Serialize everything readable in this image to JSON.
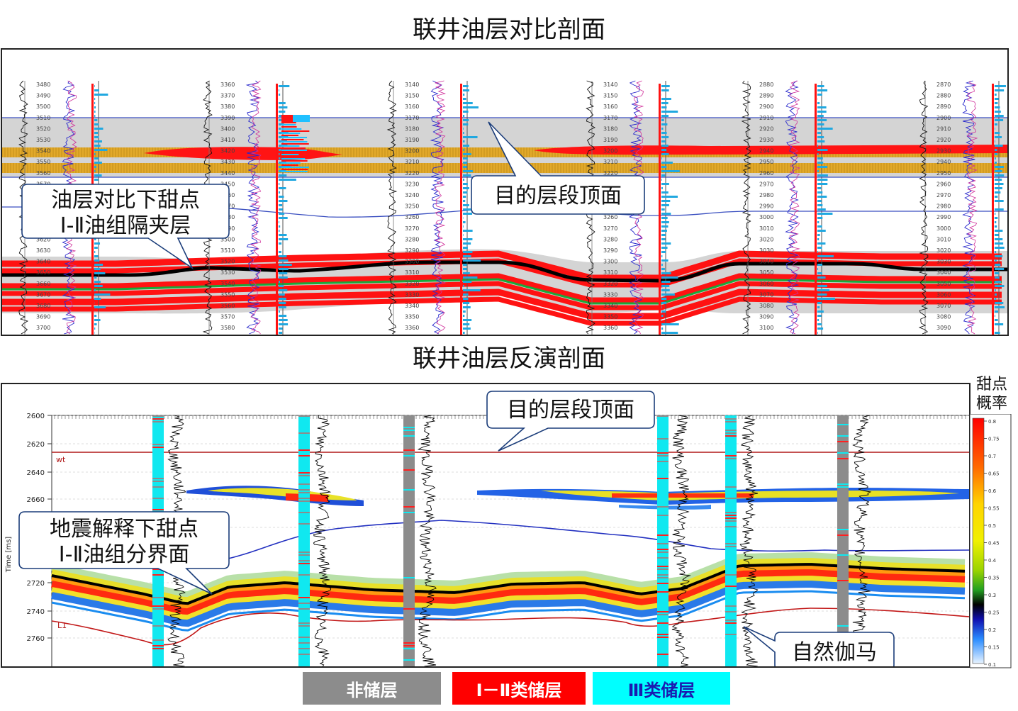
{
  "top": {
    "title": "联井油层对比剖面",
    "callout_left": [
      "油层对比下甜点",
      "Ⅰ-Ⅱ油组隔夹层"
    ],
    "callout_right": "目的层段顶面",
    "wells": [
      {
        "depths": [
          "3480",
          "3490",
          "3500",
          "3510",
          "3520",
          "3530",
          "3540",
          "3550",
          "3560",
          "3570",
          "3580",
          "3590",
          "3600",
          "3610",
          "3620",
          "3630",
          "3640",
          "3650",
          "3660",
          "3670",
          "3680",
          "3690",
          "3700"
        ]
      },
      {
        "depths": [
          "3360",
          "3370",
          "3380",
          "3390",
          "3400",
          "3410",
          "3420",
          "3430",
          "3440",
          "3450",
          "3460",
          "3470",
          "3480",
          "3490",
          "3500",
          "3510",
          "3520",
          "3530",
          "3540",
          "3550",
          "3560",
          "3570",
          "3580"
        ]
      },
      {
        "depths": [
          "3140",
          "3150",
          "3160",
          "3170",
          "3180",
          "3190",
          "3200",
          "3210",
          "3220",
          "3230",
          "3240",
          "3250",
          "3260",
          "3270",
          "3280",
          "3290",
          "3300",
          "3310",
          "3320",
          "3330",
          "3340",
          "3350",
          "3360"
        ]
      },
      {
        "depths": [
          "3140",
          "3150",
          "3160",
          "3170",
          "3180",
          "3190",
          "3200",
          "3210",
          "3220",
          "3230",
          "3240",
          "3250",
          "3260",
          "3270",
          "3280",
          "3290",
          "3300",
          "3310",
          "3320",
          "3330",
          "3340",
          "3350",
          "3360"
        ]
      },
      {
        "depths": [
          "2880",
          "2890",
          "2900",
          "2910",
          "2920",
          "2930",
          "2940",
          "2950",
          "2960",
          "2970",
          "2980",
          "2990",
          "3000",
          "3010",
          "3020",
          "3030",
          "3040",
          "3050",
          "3060",
          "3070",
          "3080",
          "3090",
          "3100"
        ]
      },
      {
        "depths": [
          "2870",
          "2880",
          "2890",
          "2900",
          "2910",
          "2920",
          "2930",
          "2940",
          "2950",
          "2960",
          "2970",
          "2980",
          "2990",
          "3000",
          "3010",
          "3020",
          "3030",
          "3040",
          "3050",
          "3060",
          "3070",
          "3080",
          "3090"
        ]
      }
    ]
  },
  "bottom": {
    "title": "联井油层反演剖面",
    "callout_left": [
      "地震解释下甜点",
      "Ⅰ-Ⅱ油组分界面"
    ],
    "callout_top": "目的层段顶面",
    "callout_gamma": "自然伽马",
    "axis_label": "Time [ms]",
    "time_ticks": [
      "2600",
      "2620",
      "2640",
      "2660",
      "2700",
      "2720",
      "2740",
      "2760"
    ],
    "horizon_wt": "wt",
    "horizon_l1": "L1",
    "colorbar_title": [
      "甜点",
      "概率"
    ],
    "colorbar_ticks": [
      "0.8",
      "0.75",
      "0.7",
      "0.65",
      "0.6",
      "0.55",
      "0.5",
      "0.45",
      "0.4",
      "0.35",
      "0.3",
      "0.25",
      "0.2",
      "0.15",
      "0.1"
    ]
  },
  "legend": {
    "non_reservoir": "非储层",
    "class_1_2": "Ⅰ－Ⅱ类储层",
    "class_3": "Ⅲ类储层",
    "colors": {
      "non_reservoir": "#8c8c8c",
      "class_1_2": "#ff0000",
      "class_3": "#00ffff"
    }
  }
}
